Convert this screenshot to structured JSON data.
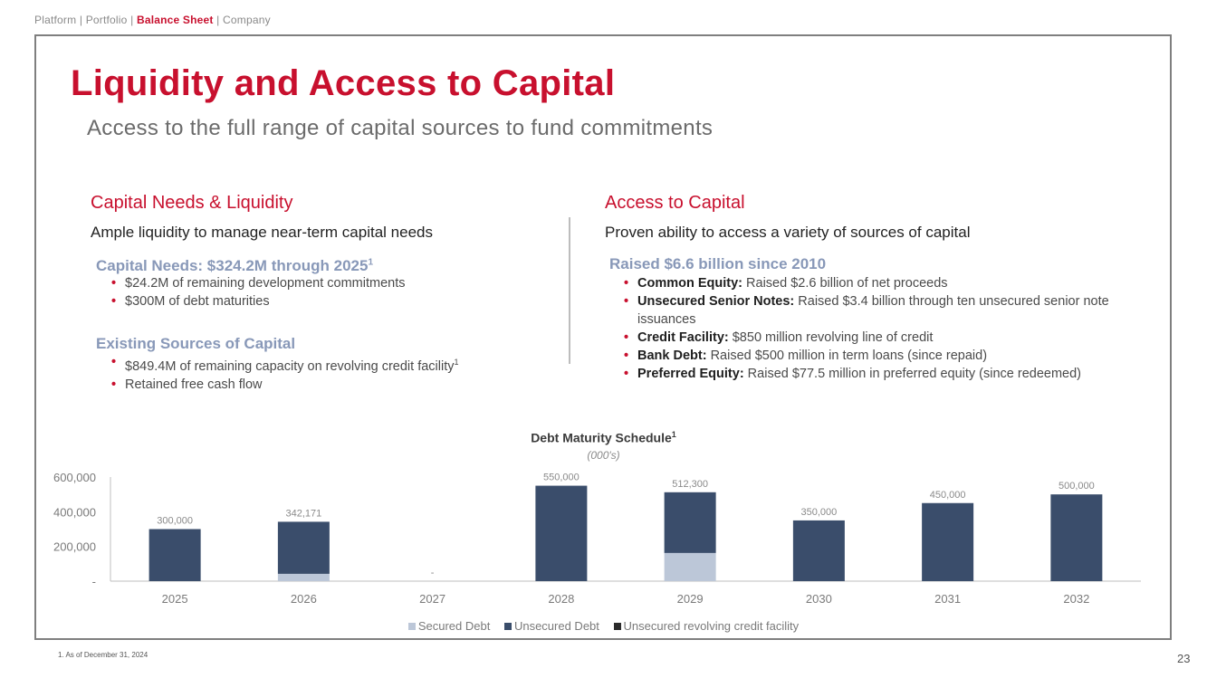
{
  "nav": {
    "items": [
      "Platform",
      "Portfolio",
      "Balance Sheet",
      "Company"
    ],
    "separator": "|",
    "active": "Balance Sheet"
  },
  "header": {
    "title": "Liquidity and Access to Capital",
    "subtitle": "Access to the full range of capital sources to fund commitments"
  },
  "left": {
    "heading": "Capital Needs & Liquidity",
    "subheading": "Ample liquidity to manage near-term capital needs",
    "groups": [
      {
        "title": "Capital Needs: $324.2M through 2025",
        "title_sup": "1",
        "bullets": [
          {
            "text": "$24.2M of remaining development commitments",
            "sup": ""
          },
          {
            "text": "$300M of debt maturities",
            "sup": ""
          }
        ]
      },
      {
        "title": "Existing Sources of Capital",
        "title_sup": "",
        "bullets": [
          {
            "text": "$849.4M of remaining capacity on revolving credit facility",
            "sup": "1"
          },
          {
            "text": "Retained free cash flow",
            "sup": ""
          }
        ]
      }
    ]
  },
  "right": {
    "heading": "Access to Capital",
    "subheading": "Proven ability to access a variety of sources of capital",
    "group_title": "Raised $6.6 billion since 2010",
    "bullets": [
      {
        "label": "Common Equity:",
        "text": " Raised $2.6 billion of net proceeds"
      },
      {
        "label": "Unsecured Senior Notes:",
        "text": " Raised $3.4 billion through ten unsecured senior note issuances"
      },
      {
        "label": "Credit Facility:",
        "text": " $850 million revolving line of credit"
      },
      {
        "label": "Bank Debt:",
        "text": " Raised $500 million in term loans (since repaid)"
      },
      {
        "label": "Preferred Equity:",
        "text": " Raised $77.5 million in preferred equity (since redeemed)"
      }
    ]
  },
  "chart_data": {
    "type": "bar",
    "stacked": true,
    "title": "Debt Maturity Schedule",
    "title_sup": "1",
    "subtitle": "(000's)",
    "categories": [
      "2025",
      "2026",
      "2027",
      "2028",
      "2029",
      "2030",
      "2031",
      "2032"
    ],
    "series": [
      {
        "name": "Secured Debt",
        "color": "#bcc7d8",
        "values": [
          0,
          42171,
          0,
          0,
          162300,
          0,
          0,
          0
        ]
      },
      {
        "name": "Unsecured Debt",
        "color": "#3a4d6b",
        "values": [
          300000,
          300000,
          0,
          550000,
          350000,
          350000,
          450000,
          500000
        ]
      },
      {
        "name": "Unsecured revolving credit facility",
        "color": "#2b2b2b",
        "values": [
          0,
          0,
          0,
          0,
          0,
          0,
          0,
          0
        ]
      }
    ],
    "totals_labels": [
      "300,000",
      "342,171",
      "-",
      "550,000",
      "512,300",
      "350,000",
      "450,000",
      "500,000"
    ],
    "yticks": [
      "-",
      "200,000",
      "400,000",
      "600,000"
    ],
    "ytick_values": [
      0,
      200000,
      400000,
      600000
    ],
    "ylim": [
      0,
      600000
    ],
    "legend_position": "bottom"
  },
  "footnote": "1.    As of December 31, 2024",
  "page_number": "23"
}
